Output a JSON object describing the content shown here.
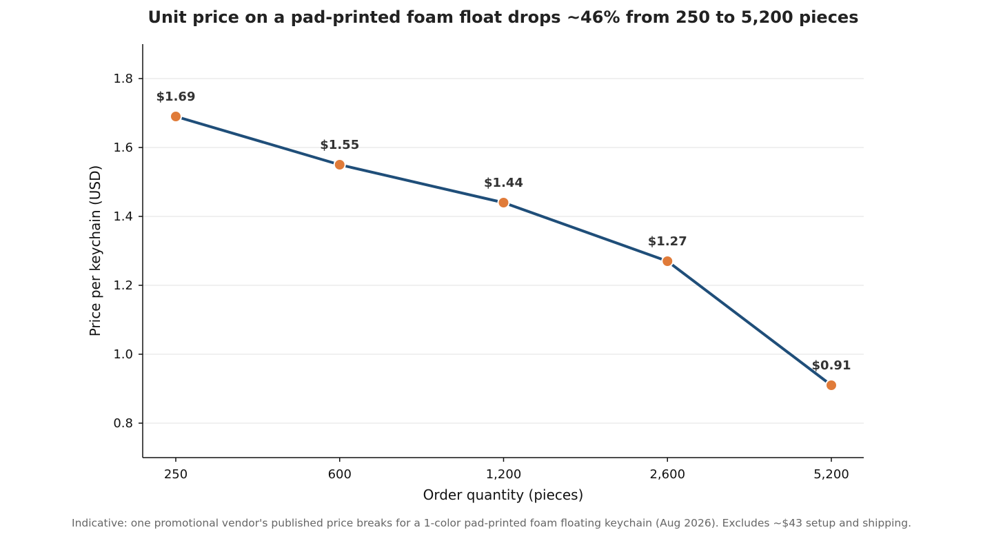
{
  "chart_data": {
    "type": "line",
    "title": "Unit price on a pad-printed foam float drops ~46% from 250 to 5,200 pieces",
    "xlabel": "Order quantity (pieces)",
    "ylabel": "Price per keychain (USD)",
    "categories": [
      "250",
      "600",
      "1,200",
      "2,600",
      "5,200"
    ],
    "values": [
      1.69,
      1.55,
      1.44,
      1.27,
      0.91
    ],
    "data_labels": [
      "$1.69",
      "$1.55",
      "$1.44",
      "$1.27",
      "$0.91"
    ],
    "ylim": [
      0.7,
      1.9
    ],
    "yticks": [
      0.8,
      1.0,
      1.2,
      1.4,
      1.6,
      1.8
    ],
    "ytick_labels": [
      "0.8",
      "1.0",
      "1.2",
      "1.4",
      "1.6",
      "1.8"
    ],
    "grid": "horizontal",
    "line_color": "#1f4e79",
    "marker_color": "#e07b39",
    "footnote": "Indicative: one promotional vendor's published price breaks for a 1-color pad-printed foam floating keychain (Aug 2026). Excludes ~$43 setup and shipping."
  }
}
